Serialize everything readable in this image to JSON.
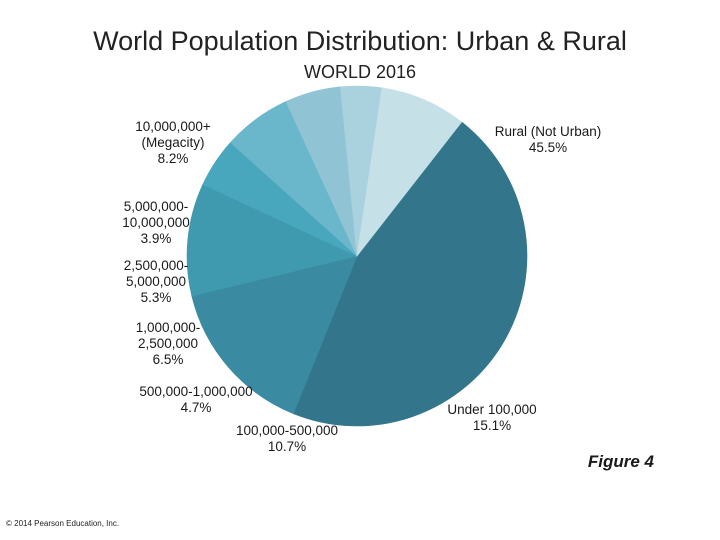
{
  "chart_data": {
    "type": "pie",
    "title": "World Population Distribution: Urban & Rural",
    "subtitle": "WORLD 2016",
    "slices": [
      {
        "label_lines": [
          "Rural (Not Urban)"
        ],
        "value_label": "45.5%",
        "value": 45.5,
        "color": "#33768b"
      },
      {
        "label_lines": [
          "Under 100,000"
        ],
        "value_label": "15.1%",
        "value": 15.1,
        "color": "#3a8ba1"
      },
      {
        "label_lines": [
          "100,000-500,000"
        ],
        "value_label": "10.7%",
        "value": 10.7,
        "color": "#3f9aaf"
      },
      {
        "label_lines": [
          "500,000-1,000,000"
        ],
        "value_label": "4.7%",
        "value": 4.7,
        "color": "#48a7bd"
      },
      {
        "label_lines": [
          "1,000,000-",
          "2,500,000"
        ],
        "value_label": "6.5%",
        "value": 6.5,
        "color": "#6ab7cc"
      },
      {
        "label_lines": [
          "2,500,000-",
          "5,000,000"
        ],
        "value_label": "5.3%",
        "value": 5.3,
        "color": "#90c4d5"
      },
      {
        "label_lines": [
          "5,000,000-",
          "10,000,000"
        ],
        "value_label": "3.9%",
        "value": 3.9,
        "color": "#a9d1de"
      },
      {
        "label_lines": [
          "10,000,000+",
          "(Megacity)"
        ],
        "value_label": "8.2%",
        "value": 8.2,
        "color": "#c6e0e8"
      }
    ]
  },
  "figure_label": "Figure 4",
  "copyright": "© 2014 Pearson Education, Inc."
}
